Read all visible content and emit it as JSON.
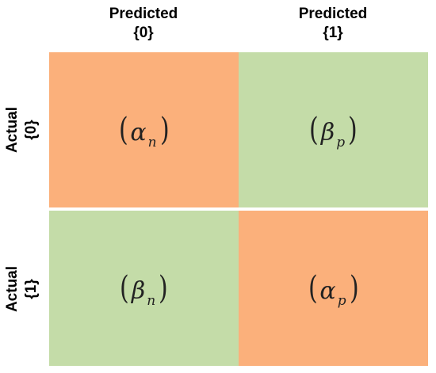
{
  "columns": [
    {
      "line1": "Predicted",
      "line2": "{0}"
    },
    {
      "line1": "Predicted",
      "line2": "{1}"
    }
  ],
  "rows": [
    {
      "line1": "Actual",
      "line2": "{0}"
    },
    {
      "line1": "Actual",
      "line2": "{1}"
    }
  ],
  "cells": [
    [
      {
        "symbol": "α",
        "subscript": "n",
        "color": "#fbb07b"
      },
      {
        "symbol": "β",
        "subscript": "p",
        "color": "#c4dca8"
      }
    ],
    [
      {
        "symbol": "β",
        "subscript": "n",
        "color": "#c4dca8"
      },
      {
        "symbol": "α",
        "subscript": "p",
        "color": "#fbb07b"
      }
    ]
  ],
  "paren_open": "(",
  "paren_close": ")"
}
